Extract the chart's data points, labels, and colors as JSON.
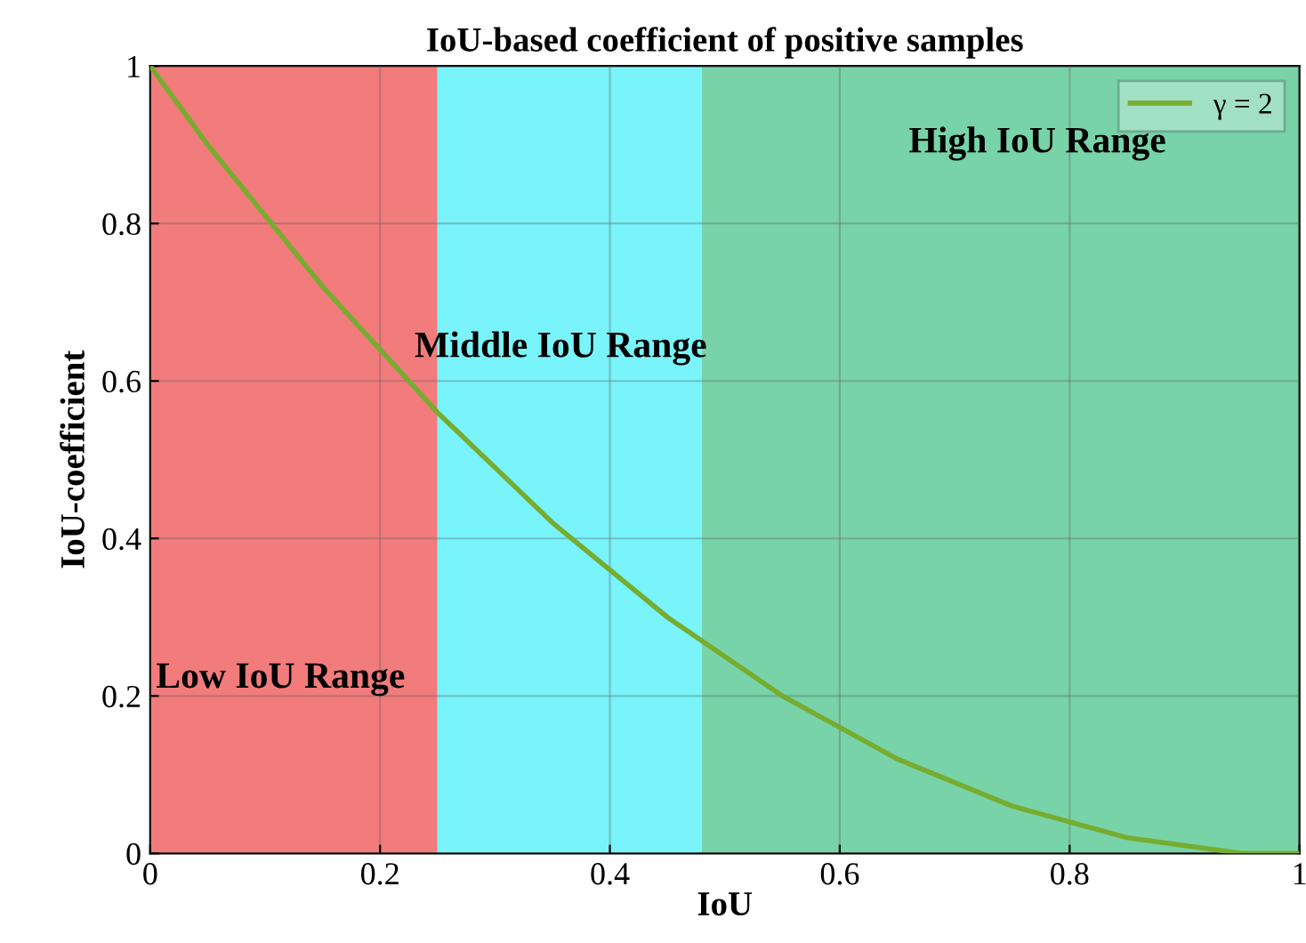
{
  "chart_data": {
    "type": "line",
    "title": "IoU-based coefficient of positive samples",
    "xlabel": "IoU",
    "ylabel": "IoU-coefficient",
    "x": [
      0,
      0.05,
      0.1,
      0.15,
      0.2,
      0.25,
      0.3,
      0.35,
      0.4,
      0.45,
      0.5,
      0.55,
      0.6,
      0.65,
      0.7,
      0.75,
      0.8,
      0.85,
      0.9,
      0.95,
      1
    ],
    "series": [
      {
        "name": "γ = 2",
        "color": "#77ac30",
        "values": [
          1,
          0.9,
          0.81,
          0.72,
          0.64,
          0.56,
          0.49,
          0.42,
          0.36,
          0.3,
          0.25,
          0.2,
          0.16,
          0.12,
          0.09,
          0.06,
          0.04,
          0.02,
          0.01,
          0,
          0
        ]
      }
    ],
    "bands": [
      {
        "axis": "x",
        "from": 0,
        "to": 0.25,
        "label": "Low IoU Range",
        "color": "#f27b7b"
      },
      {
        "axis": "x",
        "from": 0.25,
        "to": 0.48,
        "label": "Middle IoU Range",
        "color": "#78f4fa"
      },
      {
        "axis": "x",
        "from": 0.48,
        "to": 1,
        "label": "High IoU Range",
        "color": "#78d3a8"
      }
    ],
    "xlim": [
      0,
      1
    ],
    "ylim": [
      0,
      1
    ],
    "xticks": [
      0,
      0.2,
      0.4,
      0.6,
      0.8,
      1
    ],
    "yticks": [
      0,
      0.2,
      0.4,
      0.6,
      0.8,
      1
    ],
    "grid": true,
    "legend": "top right",
    "marker": "none",
    "line_style": "solid"
  }
}
